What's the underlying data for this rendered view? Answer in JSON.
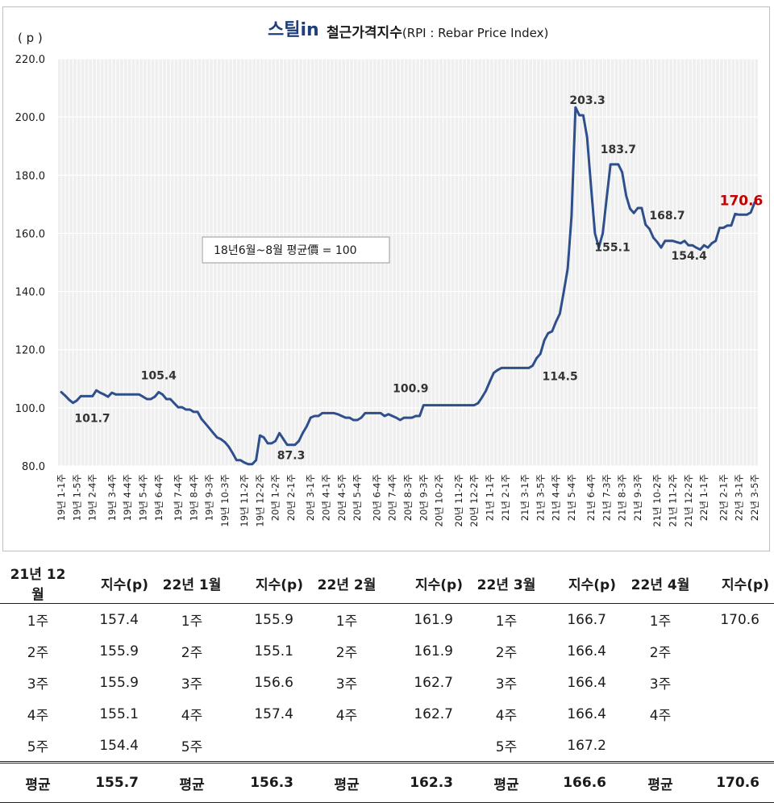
{
  "header": {
    "logo_text": "스틸in",
    "title": "철근가격지수",
    "title_suffix": "(RPI : Rebar Price Index)"
  },
  "chart_data": {
    "type": "line",
    "unit_label": "( p )",
    "ylim": [
      80.0,
      220.0
    ],
    "yticks": [
      "80.0",
      "100.0",
      "120.0",
      "140.0",
      "160.0",
      "180.0",
      "200.0",
      "220.0"
    ],
    "x_tick_labels": [
      "19년 1-1주",
      "19년 1-5주",
      "19년 2-4주",
      "19년 3-4주",
      "19년 4-4주",
      "19년 5-4주",
      "19년 6-4주",
      "19년 7-4주",
      "19년 8-4주",
      "19년 9-3주",
      "19년 10-3주",
      "19년 11-2주",
      "19년 12-2주",
      "20년 1-2주",
      "20년 2-1주",
      "20년 3-1주",
      "20년 4-1주",
      "20년 4-5주",
      "20년 5-4주",
      "20년 6-4주",
      "20년 7-4주",
      "20년 8-3주",
      "20년 9-3주",
      "20년 10-2주",
      "20년 11-2주",
      "20년 12-2주",
      "21년 1-1주",
      "21년 2-1주",
      "21년 3-1주",
      "21년 3-5주",
      "21년 4-4주",
      "21년 5-4주",
      "21년 6-4주",
      "21년 7-3주",
      "21년 8-3주",
      "21년 9-3주",
      "21년 10-2주",
      "21년 11-2주",
      "21년 12-2주",
      "22년 1-1주",
      "22년 2-1주",
      "22년 3-1주",
      "22년 3-5주"
    ],
    "values": [
      105.4,
      104.2,
      102.8,
      101.7,
      102.5,
      104.0,
      104.0,
      104.0,
      104.0,
      106.0,
      105.2,
      104.6,
      103.8,
      105.2,
      104.6,
      104.6,
      104.6,
      104.6,
      104.6,
      104.6,
      104.6,
      103.8,
      103.0,
      103.0,
      103.8,
      105.4,
      104.6,
      103.0,
      103.0,
      101.6,
      100.2,
      100.2,
      99.4,
      99.4,
      98.6,
      98.6,
      96.2,
      94.6,
      93.0,
      91.4,
      89.8,
      89.2,
      88.2,
      86.6,
      84.4,
      82.0,
      82.0,
      81.2,
      80.6,
      80.6,
      82.0,
      90.5,
      89.8,
      87.8,
      87.8,
      88.6,
      91.3,
      89.3,
      87.3,
      87.3,
      87.3,
      88.6,
      91.4,
      93.6,
      96.6,
      97.2,
      97.2,
      98.2,
      98.2,
      98.2,
      98.2,
      97.8,
      97.2,
      96.6,
      96.6,
      95.8,
      95.8,
      96.6,
      98.2,
      98.2,
      98.2,
      98.2,
      98.2,
      97.2,
      97.8,
      97.2,
      96.6,
      95.8,
      96.6,
      96.6,
      96.6,
      97.2,
      97.2,
      100.9,
      100.9,
      100.9,
      100.9,
      100.9,
      100.9,
      100.9,
      100.9,
      100.9,
      100.9,
      100.9,
      100.9,
      100.9,
      100.9,
      101.6,
      103.6,
      105.8,
      109.0,
      112.0,
      113.0,
      113.7,
      113.7,
      113.7,
      113.7,
      113.7,
      113.7,
      113.7,
      113.7,
      114.5,
      117.0,
      118.6,
      123.2,
      125.7,
      126.3,
      129.6,
      132.4,
      140.0,
      147.8,
      166.0,
      203.3,
      200.6,
      200.6,
      193.0,
      176.0,
      160.0,
      155.1,
      160.0,
      172.0,
      183.7,
      183.7,
      183.7,
      181.0,
      173.0,
      168.5,
      167.0,
      168.7,
      168.7,
      163.0,
      161.5,
      158.5,
      157.0,
      155.1,
      157.4,
      157.4,
      157.4,
      157.0,
      156.6,
      157.4,
      155.9,
      155.9,
      155.1,
      154.4,
      155.9,
      155.1,
      156.6,
      157.4,
      161.9,
      161.9,
      162.7,
      162.7,
      166.7,
      166.4,
      166.4,
      166.4,
      167.2,
      170.6
    ],
    "annotations": [
      {
        "label": "101.7",
        "index": 3
      },
      {
        "label": "105.4",
        "index": 25
      },
      {
        "label": "87.3",
        "index": 59
      },
      {
        "label": "100.9",
        "index": 93
      },
      {
        "label": "114.5",
        "index": 121
      },
      {
        "label": "203.3",
        "index": 133
      },
      {
        "label": "155.1",
        "index": 139
      },
      {
        "label": "183.7",
        "index": 143
      },
      {
        "label": "168.7",
        "index": 151
      },
      {
        "label": "154.4",
        "index": 162
      },
      {
        "label": "170.6",
        "index": 175,
        "highlight": true
      }
    ],
    "base_note": "18년6월~8월 평균價 = 100",
    "grid": true,
    "legend": "none",
    "colors": {
      "line": "#2e4f8c",
      "plot_bg": "#efefef",
      "highlight": "#c00000",
      "annotation": "#333333"
    }
  },
  "table": {
    "columns": [
      {
        "month": "21년 12월",
        "value_header": "지수(p)",
        "rows": [
          [
            "1주",
            "157.4"
          ],
          [
            "2주",
            "155.9"
          ],
          [
            "3주",
            "155.9"
          ],
          [
            "4주",
            "155.1"
          ],
          [
            "5주",
            "154.4"
          ]
        ],
        "avg_label": "평균",
        "avg": "155.7"
      },
      {
        "month": "22년 1월",
        "value_header": "지수(p)",
        "rows": [
          [
            "1주",
            "155.9"
          ],
          [
            "2주",
            "155.1"
          ],
          [
            "3주",
            "156.6"
          ],
          [
            "4주",
            "157.4"
          ],
          [
            "5주",
            ""
          ]
        ],
        "avg_label": "평균",
        "avg": "156.3"
      },
      {
        "month": "22년 2월",
        "value_header": "지수(p)",
        "rows": [
          [
            "1주",
            "161.9"
          ],
          [
            "2주",
            "161.9"
          ],
          [
            "3주",
            "162.7"
          ],
          [
            "4주",
            "162.7"
          ],
          [
            "",
            ""
          ]
        ],
        "avg_label": "평균",
        "avg": "162.3"
      },
      {
        "month": "22년 3월",
        "value_header": "지수(p)",
        "rows": [
          [
            "1주",
            "166.7"
          ],
          [
            "2주",
            "166.4"
          ],
          [
            "3주",
            "166.4"
          ],
          [
            "4주",
            "166.4"
          ],
          [
            "5주",
            "167.2"
          ]
        ],
        "avg_label": "평균",
        "avg": "166.6"
      },
      {
        "month": "22년 4월",
        "value_header": "지수(p)",
        "rows": [
          [
            "1주",
            "170.6"
          ],
          [
            "2주",
            ""
          ],
          [
            "3주",
            ""
          ],
          [
            "4주",
            ""
          ],
          [
            "",
            ""
          ]
        ],
        "avg_label": "평균",
        "avg": "170.6"
      }
    ]
  }
}
